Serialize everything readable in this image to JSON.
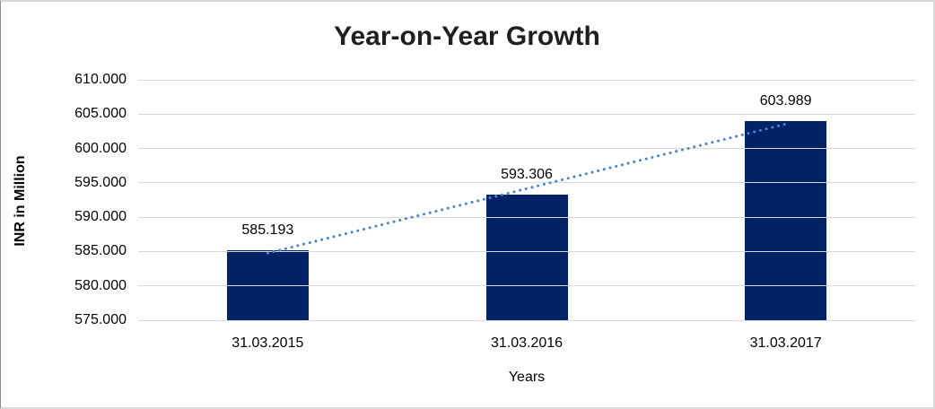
{
  "chart_data": {
    "type": "bar",
    "title": "Year-on-Year Growth",
    "xlabel": "Years",
    "ylabel": "INR in Million",
    "categories": [
      "31.03.2015",
      "31.03.2016",
      "31.03.2017"
    ],
    "values": [
      585193,
      593306,
      603989
    ],
    "value_labels": [
      "585.193",
      "593.306",
      "603.989"
    ],
    "ylim": [
      575000,
      610000
    ],
    "ytick_step": 5000,
    "ytick_labels": [
      "575.000",
      "580.000",
      "585.000",
      "590.000",
      "595.000",
      "600.000",
      "605.000",
      "610.000"
    ],
    "grid": true,
    "legend": "none",
    "trendline": "linear",
    "colors": {
      "bar": "#012266",
      "trendline": "#4a86c8",
      "gridline": "#d9d9d9",
      "title_text": "#1f1f1f",
      "axis_text": "#000000"
    }
  }
}
